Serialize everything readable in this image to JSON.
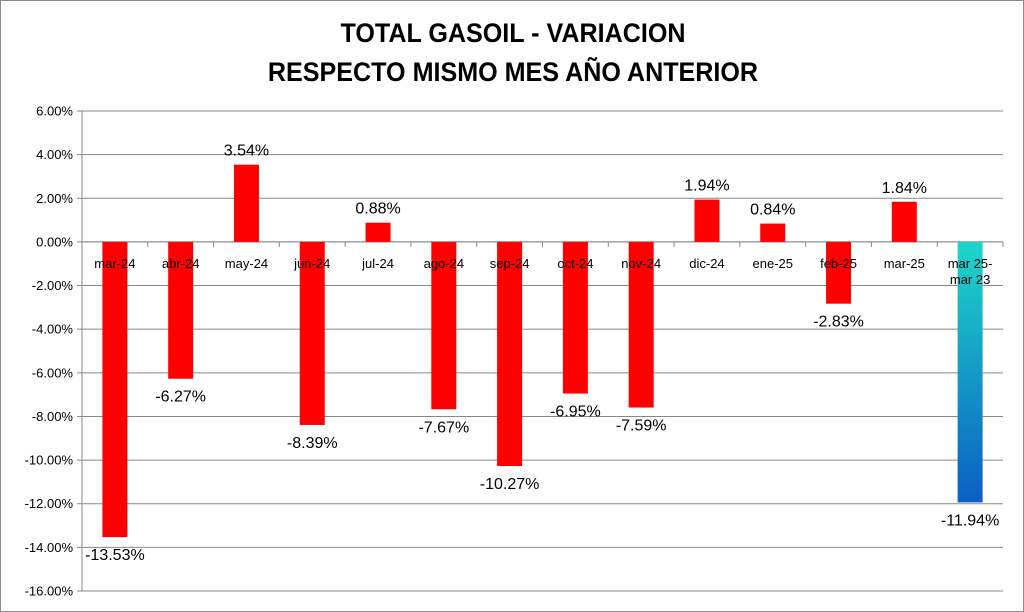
{
  "chart_data": {
    "type": "bar",
    "title_lines": [
      "TOTAL GASOIL - VARIACION",
      "RESPECTO MISMO MES AÑO ANTERIOR"
    ],
    "categories": [
      [
        "mar-24"
      ],
      [
        "abr-24"
      ],
      [
        "may-24"
      ],
      [
        "jun-24"
      ],
      [
        "jul-24"
      ],
      [
        "ago-24"
      ],
      [
        "sep-24"
      ],
      [
        "oct-24"
      ],
      [
        "nov-24"
      ],
      [
        "dic-24"
      ],
      [
        "ene-25"
      ],
      [
        "feb-25"
      ],
      [
        "mar-25"
      ],
      [
        "mar 25-",
        "mar 23"
      ]
    ],
    "values": [
      -13.53,
      -6.27,
      3.54,
      -8.39,
      0.88,
      -7.67,
      -10.27,
      -6.95,
      -7.59,
      1.94,
      0.84,
      -2.83,
      1.84,
      -11.94
    ],
    "data_labels": [
      "-13.53%",
      "-6.27%",
      "3.54%",
      "-8.39%",
      "0.88%",
      "-7.67%",
      "-10.27%",
      "-6.95%",
      "-7.59%",
      "1.94%",
      "0.84%",
      "-2.83%",
      "1.84%",
      "-11.94%"
    ],
    "y_ticks": [
      6,
      4,
      2,
      0,
      -2,
      -4,
      -6,
      -8,
      -10,
      -12,
      -14,
      -16
    ],
    "y_tick_labels": [
      "6.00%",
      "4.00%",
      "2.00%",
      "0.00%",
      "-2.00%",
      "-4.00%",
      "-6.00%",
      "-8.00%",
      "-10.00%",
      "-12.00%",
      "-14.00%",
      "-16.00%"
    ],
    "ylim": [
      -16,
      6
    ],
    "grid": true,
    "legend": "none",
    "colors": {
      "bar": "#ff0000",
      "last_bar_gradient": [
        "#1ed6c8",
        "#0a5fc4"
      ],
      "grid": "#888888",
      "axis": "#888888"
    }
  }
}
